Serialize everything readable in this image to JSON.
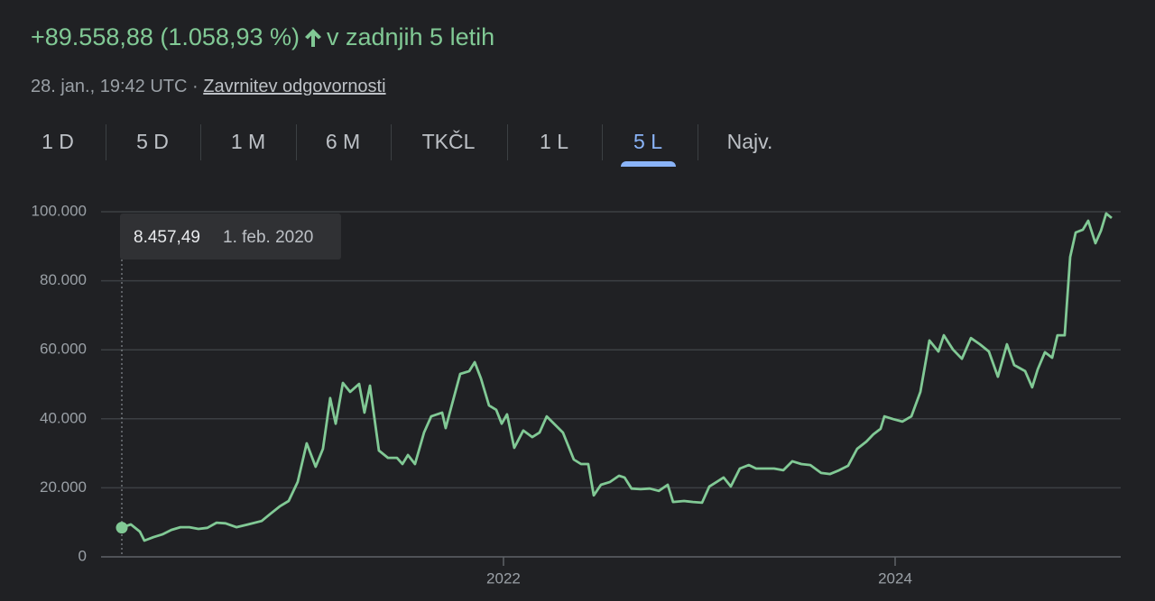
{
  "header": {
    "change": "+89.558,88 (1.058,93 %)",
    "period": "v zadnjih 5 letih",
    "timestamp": "28. jan., 19:42 UTC",
    "separator": "·",
    "disclaimer": "Zavrnitev odgovornosti"
  },
  "tabs": {
    "items": [
      "1 D",
      "5 D",
      "1 M",
      "6 M",
      "TKČL",
      "1 L",
      "5 L",
      "Najv."
    ],
    "selected": 6
  },
  "chart_data": {
    "type": "line",
    "tooltip": {
      "label": "8.457,49",
      "date": "1. feb. 2020"
    },
    "x": [
      2020.051,
      2020.097,
      2020.143,
      2020.166,
      2020.212,
      2020.258,
      2020.304,
      2020.35,
      2020.396,
      2020.442,
      2020.488,
      2020.535,
      2020.581,
      2020.636,
      2020.696,
      2020.765,
      2020.811,
      2020.857,
      2020.903,
      2020.949,
      2020.995,
      2021.041,
      2021.078,
      2021.115,
      2021.143,
      2021.18,
      2021.217,
      2021.263,
      2021.29,
      2021.318,
      2021.364,
      2021.41,
      2021.456,
      2021.484,
      2021.512,
      2021.548,
      2021.594,
      2021.631,
      2021.687,
      2021.705,
      2021.733,
      2021.779,
      2021.825,
      2021.853,
      2021.885,
      2021.926,
      2021.963,
      2021.991,
      2022.018,
      2022.055,
      2022.101,
      2022.147,
      2022.184,
      2022.221,
      2022.258,
      2022.304,
      2022.359,
      2022.396,
      2022.433,
      2022.461,
      2022.498,
      2022.544,
      2022.59,
      2022.618,
      2022.654,
      2022.7,
      2022.747,
      2022.793,
      2022.839,
      2022.866,
      2022.922,
      2022.968,
      2023.014,
      2023.051,
      2023.088,
      2023.124,
      2023.161,
      2023.207,
      2023.253,
      2023.29,
      2023.336,
      2023.382,
      2023.429,
      2023.475,
      2023.521,
      2023.567,
      2023.622,
      2023.668,
      2023.714,
      2023.76,
      2023.806,
      2023.853,
      2023.889,
      2023.926,
      2023.945,
      2023.991,
      2024.037,
      2024.083,
      2024.129,
      2024.175,
      2024.221,
      2024.249,
      2024.295,
      2024.341,
      2024.387,
      2024.433,
      2024.479,
      2024.525,
      2024.571,
      2024.608,
      2024.664,
      2024.7,
      2024.728,
      2024.765,
      2024.802,
      2024.829,
      2024.866,
      2024.894,
      2024.922,
      2024.959,
      2024.986,
      2025.023,
      2025.051,
      2025.078,
      2025.106
    ],
    "series": [
      {
        "color": "#81c995",
        "values": [
          8457.49,
          9400,
          7300,
          4700,
          5700,
          6500,
          7800,
          8600,
          8600,
          8100,
          8400,
          9900,
          9700,
          8600,
          9400,
          10400,
          12500,
          14600,
          16200,
          21700,
          32900,
          26100,
          31300,
          46000,
          38600,
          50400,
          47800,
          50100,
          41800,
          49600,
          30800,
          28700,
          28700,
          26900,
          29500,
          26900,
          36000,
          40700,
          41800,
          37300,
          43300,
          53000,
          53800,
          56400,
          51700,
          43900,
          42600,
          38600,
          41300,
          31600,
          36600,
          34700,
          36000,
          40700,
          38600,
          36000,
          28200,
          26900,
          26900,
          17800,
          20900,
          21700,
          23500,
          23000,
          19800,
          19600,
          19800,
          19100,
          20900,
          15900,
          16200,
          15900,
          15700,
          20400,
          21700,
          23000,
          20400,
          25600,
          26600,
          25600,
          25600,
          25600,
          25100,
          27700,
          26900,
          26600,
          24300,
          24000,
          25100,
          26400,
          31300,
          33400,
          35500,
          37100,
          40700,
          39900,
          39200,
          40700,
          47800,
          62700,
          59500,
          64200,
          60100,
          57400,
          63400,
          61600,
          59500,
          52200,
          61600,
          55600,
          53800,
          49100,
          54300,
          59300,
          57700,
          64200,
          64200,
          86900,
          94000,
          94800,
          97400,
          90900,
          94500,
          99500,
          98200
        ]
      }
    ],
    "xlim": [
      2019.945,
      2025.152
    ],
    "xticks": [
      2022,
      2024
    ],
    "ylim": [
      0,
      100000
    ],
    "yticks": [
      0,
      {
        "value": 20000,
        "label": "20.000"
      },
      {
        "value": 40000,
        "label": "40.000"
      },
      {
        "value": 60000,
        "label": "60.000"
      },
      {
        "value": 80000,
        "label": "80.000"
      },
      {
        "value": 100000,
        "label": "100.000"
      }
    ],
    "grid": true
  }
}
